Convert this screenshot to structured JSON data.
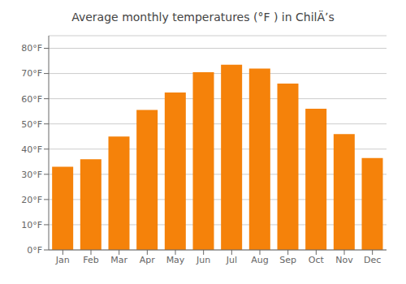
{
  "chart_data": {
    "type": "bar",
    "title": "Average monthly temperatures (°F ) in ChilÄʼs",
    "categories": [
      "Jan",
      "Feb",
      "Mar",
      "Apr",
      "May",
      "Jun",
      "Jul",
      "Aug",
      "Sep",
      "Oct",
      "Nov",
      "Dec"
    ],
    "values": [
      33,
      36,
      45,
      55.5,
      62.5,
      70.5,
      73.5,
      72,
      66,
      56,
      46,
      36.5
    ],
    "color": "#F5820A",
    "ylim": [
      0,
      85
    ],
    "yticks": [
      {
        "value": 0,
        "label": "0°F"
      },
      {
        "value": 10,
        "label": "10°F"
      },
      {
        "value": 20,
        "label": "20°F"
      },
      {
        "value": 30,
        "label": "30°F"
      },
      {
        "value": 40,
        "label": "40°F"
      },
      {
        "value": 50,
        "label": "50°F"
      },
      {
        "value": 60,
        "label": "60°F"
      },
      {
        "value": 70,
        "label": "70°F"
      },
      {
        "value": 80,
        "label": "80°F"
      }
    ],
    "grid": true
  }
}
